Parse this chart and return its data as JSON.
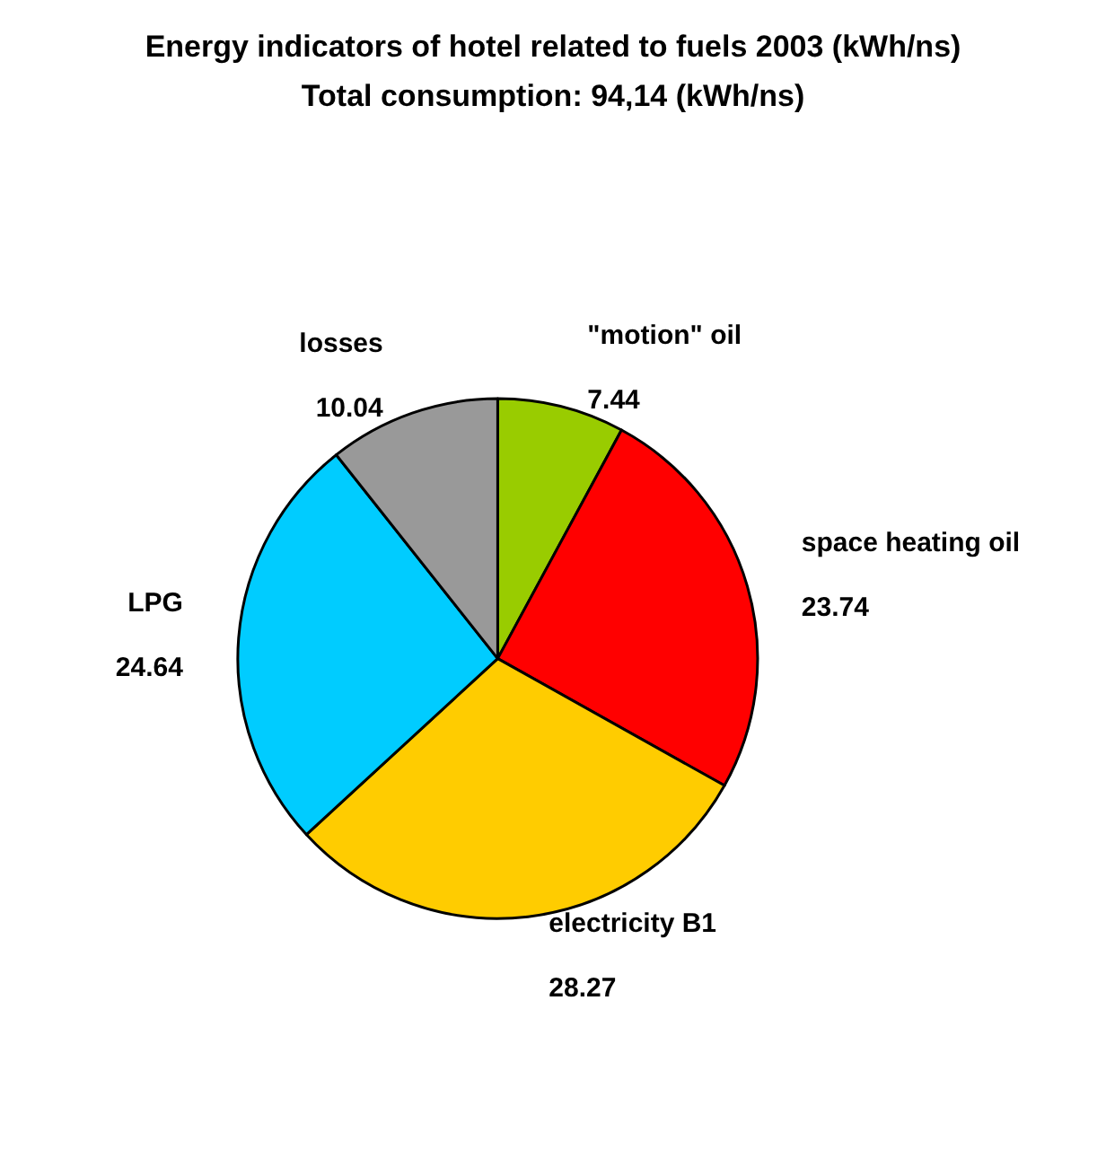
{
  "chart_data": {
    "type": "pie",
    "title": "Energy indicators of hotel related to fuels 2003 (kWh/ns)",
    "subtitle": "Total consumption: 94,14 (kWh/ns)",
    "categories": [
      "\"motion\" oil",
      "space heating oil",
      "electricity B1",
      "LPG",
      "losses"
    ],
    "values": [
      7.44,
      23.74,
      28.27,
      24.64,
      10.04
    ],
    "colors": [
      "#99cc00",
      "#ff0000",
      "#ffcc00",
      "#00ccff",
      "#999999"
    ],
    "data_labels": true,
    "legend": false
  }
}
